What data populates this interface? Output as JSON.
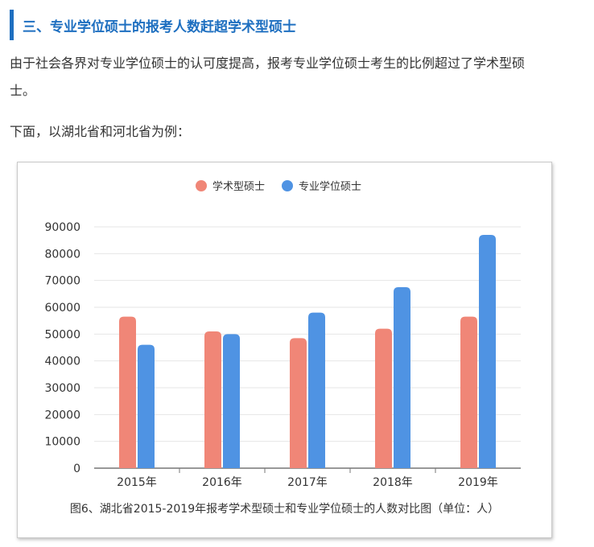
{
  "article": {
    "section_title": "三、专业学位硕士的报考人数赶超学术型硕士",
    "paragraph_1_line_1": "由于社会各界对专业学位硕士的认可度提高，报考专业学位硕士考生的比例超过了学术型硕",
    "paragraph_1_line_2": "士。",
    "paragraph_2": "下面，以湖北省和河北省为例：",
    "figure_caption": "图6、湖北省2015-2019年报考学术型硕士和专业学位硕士的人数对比图（单位：人）"
  },
  "colors": {
    "accent": "#1e6fc0",
    "academic": "#f08677",
    "professional": "#4f93e3"
  },
  "chart_data": {
    "type": "bar",
    "categories": [
      "2015年",
      "2016年",
      "2017年",
      "2018年",
      "2019年"
    ],
    "series": [
      {
        "name": "学术型硕士",
        "values": [
          56500,
          51000,
          48500,
          52000,
          56500
        ]
      },
      {
        "name": "专业学位硕士",
        "values": [
          46000,
          50000,
          58000,
          67500,
          87000
        ]
      }
    ],
    "ylim": [
      0,
      90000
    ],
    "yticks": [
      "0",
      "10000",
      "20000",
      "30000",
      "40000",
      "50000",
      "60000",
      "70000",
      "80000",
      "90000"
    ],
    "grid": true,
    "legend_position": "top-center",
    "title": "",
    "xlabel": "",
    "ylabel": ""
  }
}
